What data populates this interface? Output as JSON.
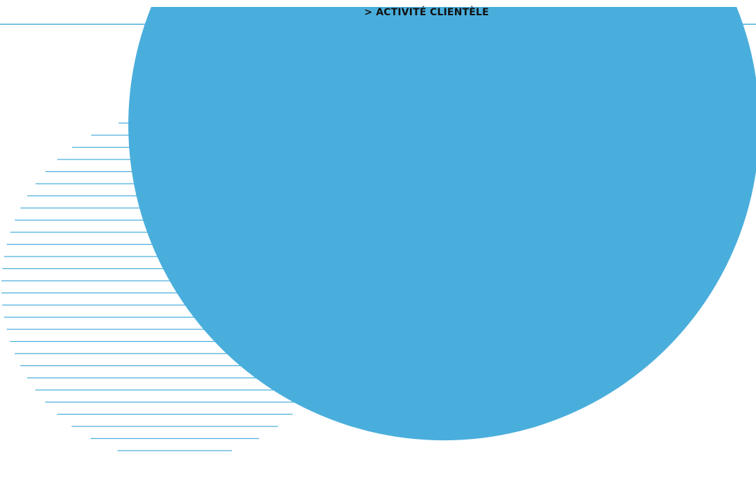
{
  "header": {
    "section_title": "> ACTIVITÉ CLIENTÈLE"
  },
  "colors": {
    "accent": "#4aaedc",
    "line": "#4aaedc",
    "text": "#111111",
    "background": "#ffffff"
  }
}
